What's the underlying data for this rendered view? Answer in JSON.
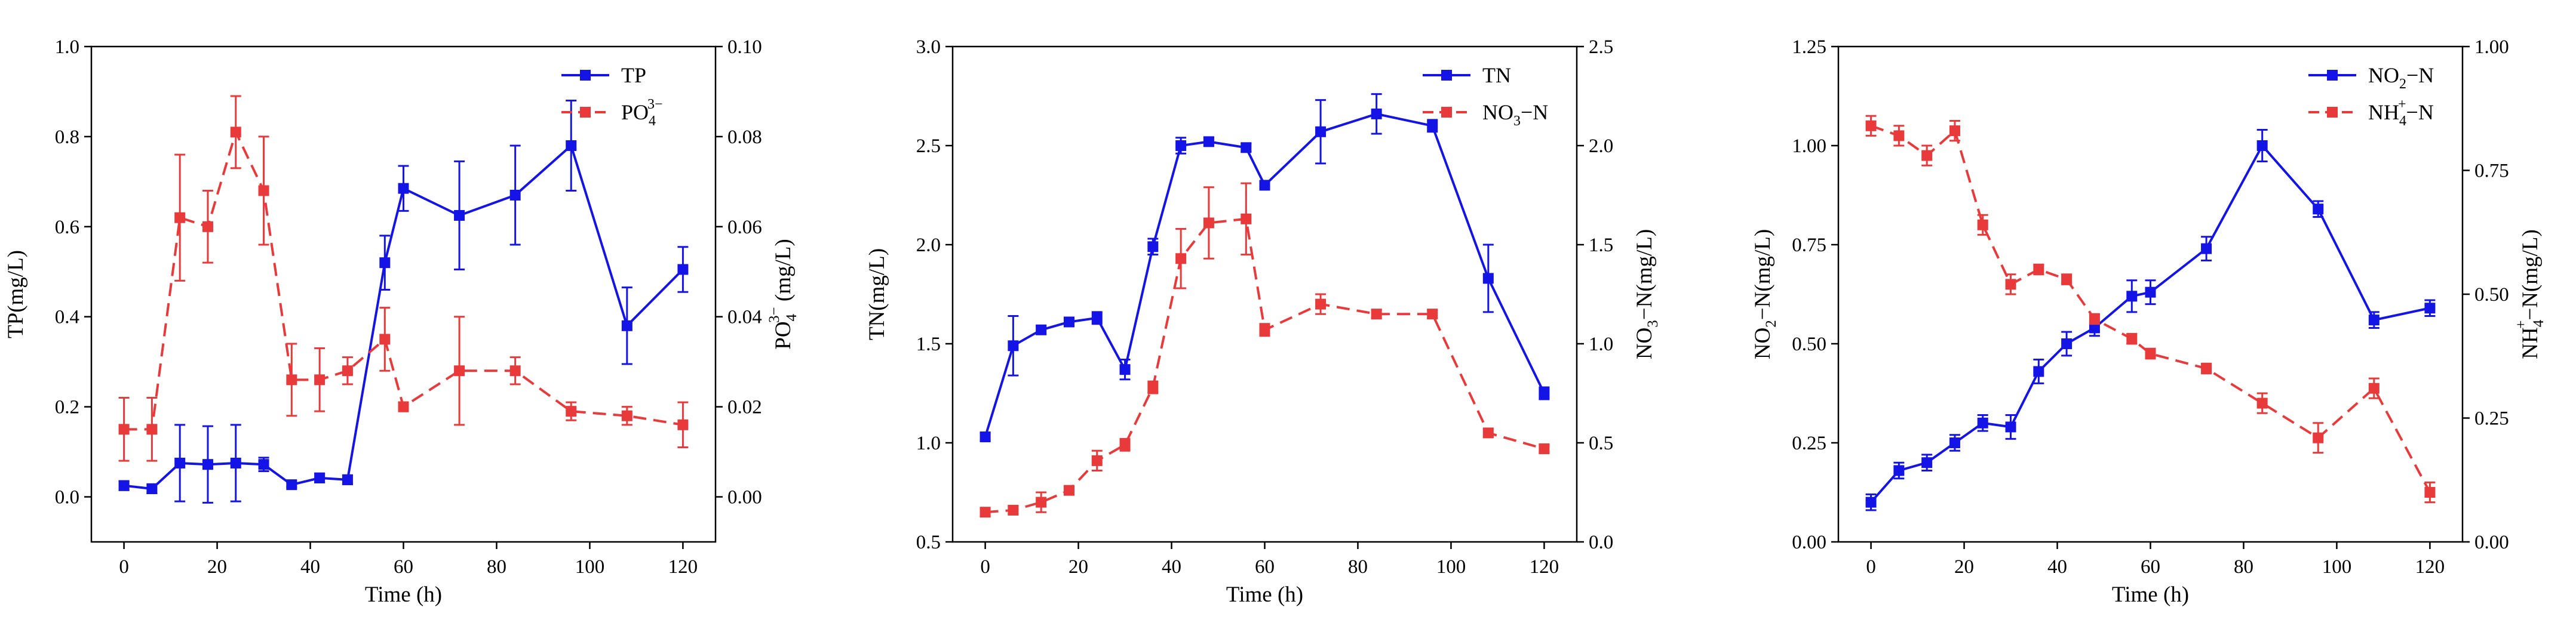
{
  "colors": {
    "series1": "#1414e6",
    "series2": "#e83a3a",
    "axis": "#000000"
  },
  "chart_data": [
    {
      "type": "line",
      "x": [
        0,
        6,
        12,
        18,
        24,
        30,
        36,
        42,
        48,
        56,
        60,
        72,
        84,
        96,
        108,
        120
      ],
      "xlabel": "Time (h)",
      "xlim": [
        -7,
        127
      ],
      "xticks": [
        0,
        20,
        40,
        60,
        80,
        100,
        120
      ],
      "left_axis": {
        "label": "TP(mg/L)",
        "lim": [
          -0.1,
          1.0
        ],
        "ticks": [
          "0.0",
          "0.2",
          "0.4",
          "0.6",
          "0.8",
          "1.0"
        ]
      },
      "right_axis": {
        "label_main": "PO",
        "label_sub": "4",
        "label_sup": "3−",
        "label_rest": " (mg/L)",
        "lim": [
          -0.01,
          0.1
        ],
        "ticks": [
          "0.00",
          "0.02",
          "0.04",
          "0.06",
          "0.08",
          "0.10"
        ]
      },
      "series": [
        {
          "name_main": "TP",
          "name_sub": "",
          "name_sup": "",
          "name_rest": "",
          "axis": "left",
          "style": "solid",
          "values": [
            0.025,
            0.018,
            0.075,
            0.072,
            0.075,
            0.072,
            0.027,
            0.042,
            0.038,
            0.52,
            0.685,
            0.625,
            0.67,
            0.78,
            0.38,
            0.505
          ],
          "errors": [
            0.01,
            0.01,
            0.085,
            0.085,
            0.085,
            0.015,
            0.005,
            0.01,
            0.01,
            0.06,
            0.05,
            0.12,
            0.11,
            0.1,
            0.085,
            0.05
          ]
        },
        {
          "name_main": "PO",
          "name_sub": "4",
          "name_sup": "3−",
          "name_rest": "",
          "axis": "right",
          "style": "dashed",
          "values": [
            0.015,
            0.015,
            0.062,
            0.06,
            0.081,
            0.068,
            0.026,
            0.026,
            0.028,
            0.035,
            0.02,
            0.028,
            0.028,
            0.019,
            0.018,
            0.016
          ],
          "errors": [
            0.007,
            0.007,
            0.014,
            0.008,
            0.008,
            0.012,
            0.008,
            0.007,
            0.003,
            0.007,
            0.001,
            0.012,
            0.003,
            0.002,
            0.002,
            0.005
          ]
        }
      ]
    },
    {
      "type": "line",
      "x": [
        0,
        6,
        12,
        18,
        24,
        30,
        36,
        42,
        48,
        56,
        60,
        72,
        84,
        96,
        108,
        120
      ],
      "xlabel": "Time (h)",
      "xlim": [
        -7,
        127
      ],
      "xticks": [
        0,
        20,
        40,
        60,
        80,
        100,
        120
      ],
      "left_axis": {
        "label": "TN(mg/L)",
        "lim": [
          0.5,
          3.0
        ],
        "ticks": [
          "0.5",
          "1.0",
          "1.5",
          "2.0",
          "2.5",
          "3.0"
        ]
      },
      "right_axis": {
        "label_main": "NO",
        "label_sub": "3",
        "label_sup": "",
        "label_rest": "−N(mg/L)",
        "lim": [
          0,
          2.5
        ],
        "ticks": [
          "0.0",
          "0.5",
          "1.0",
          "1.5",
          "2.0",
          "2.5"
        ]
      },
      "series": [
        {
          "name_main": "TN",
          "name_sub": "",
          "name_sup": "",
          "name_rest": "",
          "axis": "left",
          "style": "solid",
          "values": [
            1.03,
            1.49,
            1.57,
            1.61,
            1.63,
            1.37,
            1.99,
            2.5,
            2.52,
            2.49,
            2.3,
            2.57,
            2.66,
            2.6,
            1.83,
            1.25
          ],
          "errors": [
            0.02,
            0.15,
            0.02,
            0.02,
            0.03,
            0.05,
            0.04,
            0.04,
            0.02,
            0.02,
            0.02,
            0.16,
            0.1,
            0.03,
            0.17,
            0.03
          ]
        },
        {
          "name_main": "NO",
          "name_sub": "3",
          "name_sup": "",
          "name_rest": "−N",
          "axis": "right",
          "style": "dashed",
          "values": [
            0.15,
            0.16,
            0.2,
            0.26,
            0.41,
            0.49,
            0.78,
            1.43,
            1.61,
            1.63,
            1.07,
            1.2,
            1.15,
            1.15,
            0.55,
            0.47
          ],
          "errors": [
            0.02,
            0.02,
            0.05,
            0.02,
            0.05,
            0.03,
            0.03,
            0.15,
            0.18,
            0.18,
            0.03,
            0.05,
            0.02,
            0.02,
            0.02,
            0.02
          ]
        }
      ]
    },
    {
      "type": "line",
      "x": [
        0,
        6,
        12,
        18,
        24,
        30,
        36,
        42,
        48,
        56,
        60,
        72,
        84,
        96,
        108,
        120
      ],
      "xlabel": "Time (h)",
      "xlim": [
        -7,
        127
      ],
      "xticks": [
        0,
        20,
        40,
        60,
        80,
        100,
        120
      ],
      "left_axis": {
        "label_main": "NO",
        "label_sub": "2",
        "label_sup": "",
        "label_rest": "−N(mg/L)",
        "lim": [
          0,
          1.25
        ],
        "ticks": [
          "0.00",
          "0.25",
          "0.50",
          "0.75",
          "1.00",
          "1.25"
        ]
      },
      "right_axis": {
        "label_main": "NH",
        "label_sub": "4",
        "label_sup": "+",
        "label_rest": "−N(mg/L)",
        "lim": [
          0,
          1.0
        ],
        "ticks": [
          "0.00",
          "0.25",
          "0.50",
          "0.75",
          "1.00"
        ]
      },
      "series": [
        {
          "name_main": "NO",
          "name_sub": "2",
          "name_sup": "",
          "name_rest": "−N",
          "axis": "left",
          "style": "solid",
          "values": [
            0.1,
            0.18,
            0.2,
            0.25,
            0.3,
            0.29,
            0.43,
            0.5,
            0.54,
            0.62,
            0.63,
            0.74,
            1.0,
            0.84,
            0.56,
            0.59
          ],
          "errors": [
            0.02,
            0.02,
            0.02,
            0.02,
            0.02,
            0.03,
            0.03,
            0.03,
            0.02,
            0.04,
            0.03,
            0.03,
            0.04,
            0.02,
            0.02,
            0.02
          ]
        },
        {
          "name_main": "NH",
          "name_sub": "4",
          "name_sup": "+",
          "name_rest": "−N",
          "axis": "right",
          "style": "dashed",
          "values": [
            0.84,
            0.82,
            0.78,
            0.83,
            0.64,
            0.52,
            0.55,
            0.53,
            0.45,
            0.41,
            0.38,
            0.35,
            0.28,
            0.21,
            0.31,
            0.1
          ],
          "errors": [
            0.02,
            0.02,
            0.02,
            0.02,
            0.02,
            0.02,
            0.01,
            0.01,
            0.01,
            0.01,
            0.01,
            0.01,
            0.02,
            0.03,
            0.02,
            0.02
          ]
        }
      ]
    }
  ]
}
